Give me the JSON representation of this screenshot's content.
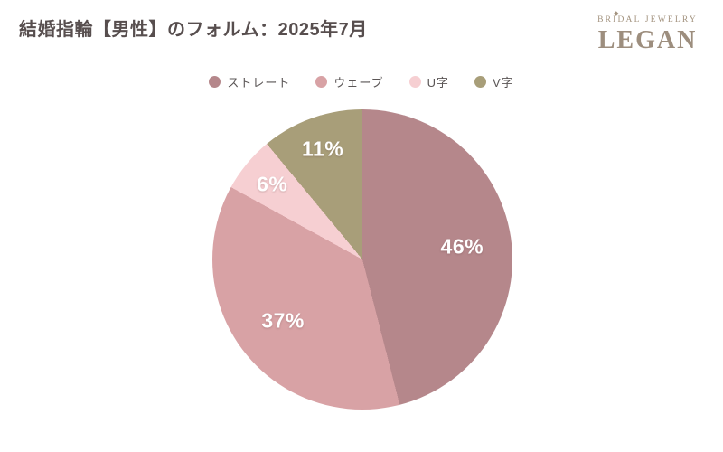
{
  "header": {
    "title": "結婚指輪【男性】のフォルム：2025年7月",
    "logo": {
      "top": "BRIDAL JEWELRY",
      "name": "LEGAN",
      "color": "#9d8e7e"
    }
  },
  "legend": [
    {
      "label": "ストレート",
      "color": "#b5878b"
    },
    {
      "label": "ウェーブ",
      "color": "#d8a2a5"
    },
    {
      "label": "U字",
      "color": "#f6cfd2"
    },
    {
      "label": "V字",
      "color": "#a89e79"
    }
  ],
  "chart_data": {
    "type": "pie",
    "title": "結婚指輪【男性】のフォルム：2025年7月",
    "labels": [
      "ストレート",
      "ウェーブ",
      "U字",
      "V字"
    ],
    "values": [
      46,
      37,
      6,
      11
    ],
    "unit": "%",
    "data_labels": [
      "46%",
      "37%",
      "6%",
      "11%"
    ],
    "colors": [
      "#b5878b",
      "#d8a2a5",
      "#f6cfd2",
      "#a89e79"
    ],
    "start_angle_deg": 0,
    "direction": "clockwise",
    "legend_position": "top",
    "data_label_color": "#ffffff"
  },
  "colors": {
    "background": "#ffffff",
    "title_text": "#574e4e",
    "legend_text": "#5a5555",
    "logo": "#9d8e7e"
  }
}
